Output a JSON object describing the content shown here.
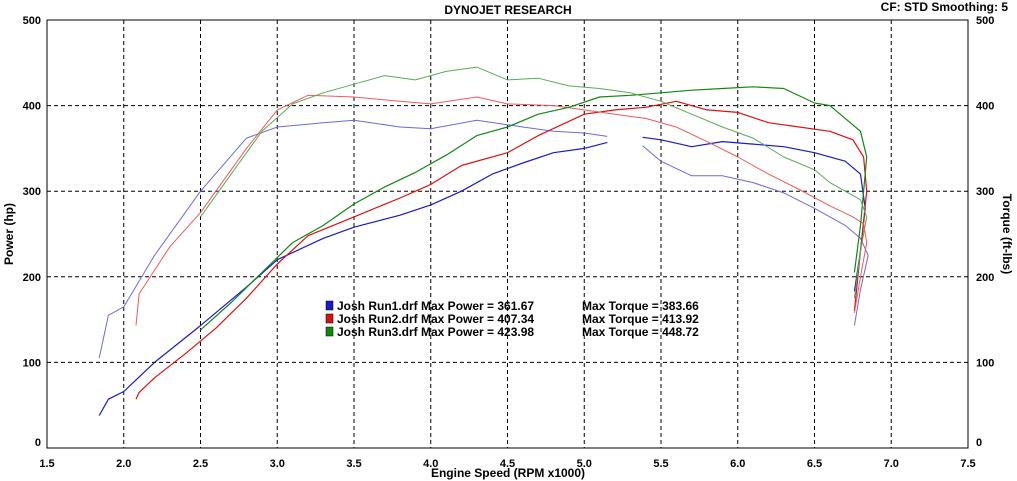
{
  "chart_data": {
    "type": "line",
    "title": "DYNOJET RESEARCH",
    "header_right": "CF: STD   Smoothing: 5",
    "xlabel": "Engine Speed (RPM x1000)",
    "ylabel_left": "Power (hp)",
    "ylabel_right": "Torque (ft-lbs)",
    "xlim": [
      1.5,
      7.5
    ],
    "ylim": [
      0,
      500
    ],
    "x_ticks": [
      "1.5",
      "2.0",
      "2.5",
      "3.0",
      "3.5",
      "4.0",
      "4.5",
      "5.0",
      "5.5",
      "6.0",
      "6.5",
      "7.0",
      "7.5"
    ],
    "y_ticks": [
      "0",
      "100",
      "200",
      "300",
      "400",
      "500"
    ],
    "grid": true,
    "legend_position": "center",
    "legend": [
      {
        "color": "#1a1acc",
        "file": "Josh Run1.drf",
        "power_text": "Max Power = 361.67",
        "torque_text": "Max Torque = 383.66"
      },
      {
        "color": "#dd1111",
        "file": "Josh Run2.drf",
        "power_text": "Max Power = 407.34",
        "torque_text": "Max Torque = 413.92"
      },
      {
        "color": "#118811",
        "file": "Josh Run3.drf",
        "power_text": "Max Power = 423.98",
        "torque_text": "Max Torque = 448.72"
      }
    ],
    "series": [
      {
        "name": "Josh Run1.drf",
        "measure": "power",
        "color": "#1a1acc",
        "x": [
          1.84,
          1.9,
          2.0,
          2.2,
          2.5,
          2.8,
          3.0,
          3.3,
          3.5,
          3.8,
          4.0,
          4.2,
          4.4,
          4.6,
          4.8,
          5.0,
          5.15
        ],
        "y": [
          38,
          57,
          66,
          100,
          143,
          188,
          220,
          245,
          258,
          272,
          284,
          300,
          320,
          333,
          345,
          350,
          357
        ]
      },
      {
        "name": "Josh Run1.drf",
        "measure": "power",
        "color": "#1a1acc",
        "x": [
          5.38,
          5.5,
          5.7,
          5.9,
          6.1,
          6.3,
          6.5,
          6.7,
          6.8,
          6.83,
          6.8,
          6.76
        ],
        "y": [
          363,
          360,
          352,
          358,
          355,
          352,
          345,
          335,
          320,
          280,
          230,
          183
        ]
      },
      {
        "name": "Josh Run1.drf",
        "measure": "torque",
        "color": "#6a6ae0",
        "x": [
          1.84,
          1.9,
          2.0,
          2.2,
          2.5,
          2.8,
          3.0,
          3.3,
          3.5,
          3.8,
          4.0,
          4.3,
          4.6,
          4.8,
          5.0,
          5.15
        ],
        "y": [
          105,
          155,
          165,
          225,
          300,
          362,
          375,
          380,
          383,
          375,
          373,
          383,
          375,
          370,
          368,
          364
        ]
      },
      {
        "name": "Josh Run1.drf",
        "measure": "torque",
        "color": "#6a6ae0",
        "x": [
          5.38,
          5.5,
          5.7,
          5.9,
          6.1,
          6.3,
          6.5,
          6.7,
          6.8,
          6.85,
          6.8,
          6.76
        ],
        "y": [
          353,
          335,
          318,
          318,
          310,
          298,
          280,
          260,
          245,
          225,
          185,
          143
        ]
      },
      {
        "name": "Josh Run2.drf",
        "measure": "power",
        "color": "#dd1111",
        "x": [
          2.08,
          2.1,
          2.2,
          2.4,
          2.6,
          2.8,
          3.0,
          3.2,
          3.5,
          3.8,
          4.0,
          4.2,
          4.5,
          4.7,
          5.0,
          5.2,
          5.4,
          5.6,
          5.8,
          6.0,
          6.2,
          6.4,
          6.6,
          6.75,
          6.82,
          6.84,
          6.8,
          6.76
        ],
        "y": [
          57,
          65,
          82,
          110,
          140,
          175,
          215,
          248,
          270,
          292,
          308,
          330,
          345,
          365,
          390,
          395,
          398,
          405,
          395,
          392,
          380,
          375,
          370,
          360,
          340,
          300,
          230,
          160
        ]
      },
      {
        "name": "Josh Run2.drf",
        "measure": "torque",
        "color": "#ee5a5a",
        "x": [
          2.08,
          2.1,
          2.3,
          2.5,
          2.8,
          3.0,
          3.2,
          3.5,
          3.8,
          4.0,
          4.3,
          4.5,
          4.8,
          5.0,
          5.2,
          5.4,
          5.6,
          5.8,
          6.0,
          6.2,
          6.4,
          6.6,
          6.75,
          6.82,
          6.84,
          6.8,
          6.76
        ],
        "y": [
          143,
          180,
          235,
          275,
          350,
          395,
          412,
          410,
          405,
          402,
          410,
          402,
          400,
          395,
          390,
          385,
          375,
          358,
          340,
          320,
          302,
          283,
          270,
          262,
          240,
          200,
          158
        ]
      },
      {
        "name": "Josh Run3.drf",
        "measure": "power",
        "color": "#118811",
        "x": [
          2.5,
          2.7,
          2.9,
          3.1,
          3.3,
          3.5,
          3.7,
          3.9,
          4.1,
          4.3,
          4.5,
          4.7,
          4.9,
          5.1,
          5.3,
          5.5,
          5.7,
          5.9,
          6.1,
          6.3,
          6.5,
          6.6,
          6.7,
          6.8,
          6.84,
          6.8,
          6.76
        ],
        "y": [
          138,
          170,
          205,
          240,
          260,
          285,
          305,
          322,
          342,
          365,
          375,
          390,
          398,
          410,
          412,
          415,
          418,
          420,
          422,
          420,
          403,
          400,
          385,
          370,
          340,
          260,
          205
        ]
      },
      {
        "name": "Josh Run3.drf",
        "measure": "torque",
        "color": "#5aaa5a",
        "x": [
          2.5,
          2.7,
          2.9,
          3.1,
          3.3,
          3.5,
          3.7,
          3.9,
          4.1,
          4.3,
          4.5,
          4.7,
          4.9,
          5.1,
          5.3,
          5.5,
          5.7,
          5.9,
          6.1,
          6.3,
          6.5,
          6.6,
          6.7,
          6.8,
          6.84,
          6.8,
          6.76
        ],
        "y": [
          270,
          320,
          370,
          402,
          415,
          425,
          435,
          430,
          440,
          445,
          430,
          432,
          423,
          420,
          415,
          405,
          390,
          375,
          362,
          340,
          325,
          310,
          300,
          290,
          270,
          230,
          175
        ]
      }
    ]
  }
}
